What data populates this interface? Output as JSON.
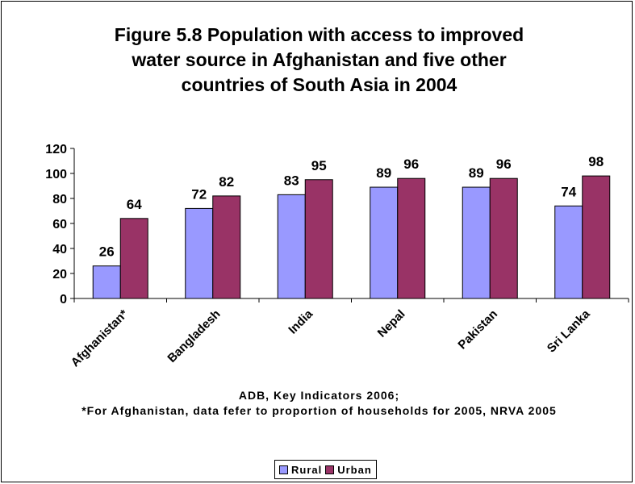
{
  "chart_data": {
    "type": "bar",
    "title": "Figure 5.8 Population with access to improved\nwater source in Afghanistan and five other\ncountries of South Asia in 2004",
    "categories": [
      "Afghanistan*",
      "Bangladesh",
      "India",
      "Nepal",
      "Pakistan",
      "Sri Lanka"
    ],
    "series": [
      {
        "name": "Rural",
        "values": [
          26,
          72,
          83,
          89,
          89,
          74
        ]
      },
      {
        "name": "Urban",
        "values": [
          64,
          82,
          95,
          96,
          96,
          98
        ]
      }
    ],
    "ylim": [
      0,
      120
    ],
    "yticks": [
      "0",
      "20",
      "40",
      "60",
      "80",
      "100",
      "120"
    ],
    "grid": false,
    "legend": "bottom",
    "colors": {
      "Rural": "#9999ff",
      "Urban": "#993366"
    }
  },
  "note": {
    "source": "ADB, Key Indicators 2006;",
    "footnote": "*For Afghanistan, data fefer to proportion of households for 2005, NRVA 2005"
  }
}
